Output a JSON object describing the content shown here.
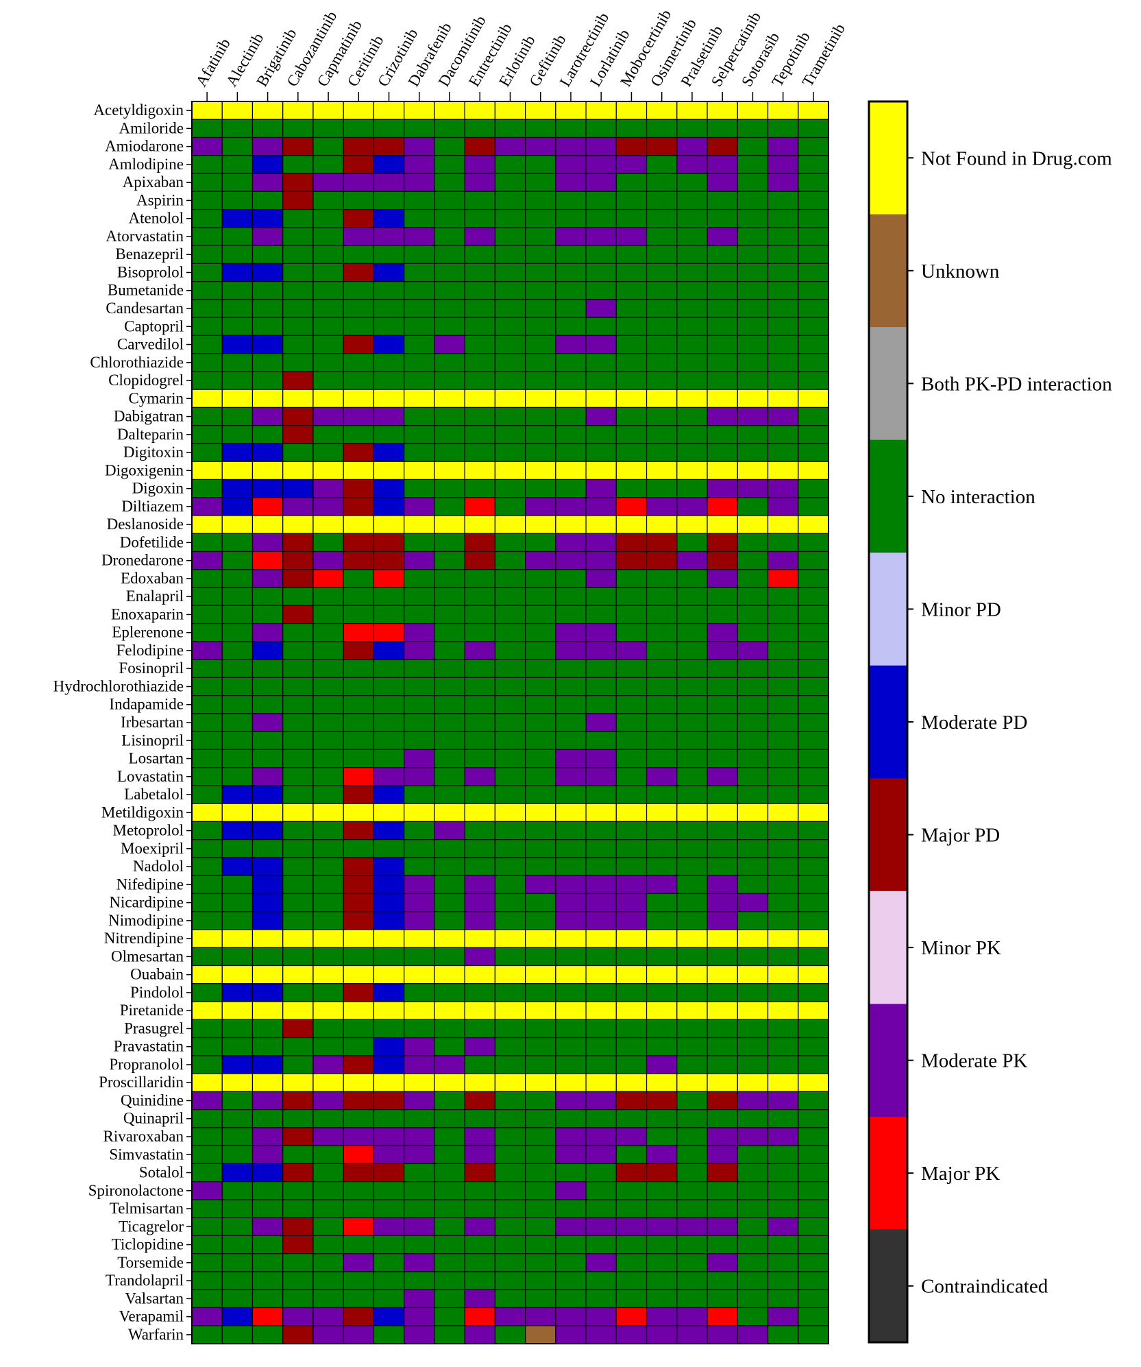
{
  "chart_data": {
    "type": "heatmap",
    "title": "",
    "columns": [
      "Afatinib",
      "Alectinib",
      "Brigatinib",
      "Cabozantinib",
      "Capmatinib",
      "Ceritinib",
      "Crizotinib",
      "Dabrafenib",
      "Dacomitinib",
      "Entrectinib",
      "Erlotinib",
      "Gefitinib",
      "Larotrectinib",
      "Lorlatinib",
      "Mobocertinib",
      "Osimertinib",
      "Pralsetinib",
      "Selpercatinib",
      "Sotorasib",
      "Tepotinib",
      "Trametinib"
    ],
    "rows": [
      "Acetyldigoxin",
      "Amiloride",
      "Amiodarone",
      "Amlodipine",
      "Apixaban",
      "Aspirin",
      "Atenolol",
      "Atorvastatin",
      "Benazepril",
      "Bisoprolol",
      "Bumetanide",
      "Candesartan",
      "Captopril",
      "Carvedilol",
      "Chlorothiazide",
      "Clopidogrel",
      "Cymarin",
      "Dabigatran",
      "Dalteparin",
      "Digitoxin",
      "Digoxigenin",
      "Digoxin",
      "Diltiazem",
      "Deslanoside",
      "Dofetilide",
      "Dronedarone",
      "Edoxaban",
      "Enalapril",
      "Enoxaparin",
      "Eplerenone",
      "Felodipine",
      "Fosinopril",
      "Hydrochlorothiazide",
      "Indapamide",
      "Irbesartan",
      "Lisinopril",
      "Losartan",
      "Lovastatin",
      "Labetalol",
      "Metildigoxin",
      "Metoprolol",
      "Moexipril",
      "Nadolol",
      "Nifedipine",
      "Nicardipine",
      "Nimodipine",
      "Nitrendipine",
      "Olmesartan",
      "Ouabain",
      "Pindolol",
      "Piretanide",
      "Prasugrel",
      "Pravastatin",
      "Propranolol",
      "Proscillaridin",
      "Quinidine",
      "Quinapril",
      "Rivaroxaban",
      "Simvastatin",
      "Sotalol",
      "Spironolactone",
      "Telmisartan",
      "Ticagrelor",
      "Ticlopidine",
      "Torsemide",
      "Trandolapril",
      "Valsartan",
      "Verapamil",
      "Warfarin"
    ],
    "categories": [
      {
        "code": "Y",
        "label": "Not Found in Drug.com",
        "color": "#FFFF00"
      },
      {
        "code": "U",
        "label": "Unknown",
        "color": "#996633"
      },
      {
        "code": "B",
        "label": "Both PK-PD interaction",
        "color": "#9E9E9E"
      },
      {
        "code": "G",
        "label": "No interaction",
        "color": "#008000"
      },
      {
        "code": "L",
        "label": "Minor PD",
        "color": "#C2C2F5"
      },
      {
        "code": "D",
        "label": "Moderate PD",
        "color": "#0000CC"
      },
      {
        "code": "M",
        "label": "Major PD",
        "color": "#990000"
      },
      {
        "code": "K",
        "label": "Minor PK",
        "color": "#ECCDEE"
      },
      {
        "code": "P",
        "label": "Moderate PK",
        "color": "#7000A8"
      },
      {
        "code": "R",
        "label": "Major PK",
        "color": "#FF0000"
      },
      {
        "code": "C",
        "label": "Contraindicated",
        "color": "#333333"
      }
    ],
    "matrix": [
      "YYYYYYYYYYYYYYYYYYYYY",
      "GGGGGGGGGGGGGGGGGGGGG",
      "PGPMGMMPGMPPPPMMPMGPG",
      "GGDGGMDPGPGGPPPGPPGPG",
      "GGPMPPPPGPGGPPGGGPGPG",
      "GGGMGGGGGGGGGGGGGGGGG",
      "GDDGGMDGGGGGGGGGGGGGG",
      "GGPGGPPPGPGGPPPGGPGGG",
      "GGGGGGGGGGGGGGGGGGGGG",
      "GDDGGMDGGGGGGGGGGGGGG",
      "GGGGGGGGGGGGGGGGGGGGG",
      "GGGGGGGGGGGGGPGGGGGGG",
      "GGGGGGGGGGGGGGGGGGGGG",
      "GDDGGMDGPGGGPPGGGGGGG",
      "GGGGGGGGGGGGGGGGGGGGG",
      "GGGMGGGGGGGGGGGGGGGGG",
      "YYYYYYYYYYYYYYYYYYYYY",
      "GGPMPPPGGGGGGPGGGPPPG",
      "GGGMGGGGGGGGGGGGGGGGG",
      "GDDGGMDGGGGGGGGGGGGGG",
      "YYYYYYYYYYYYYYYYYYYYY",
      "GDDDPMDGGGGGGPGGGPPPG",
      "PDRPPMDPGRGPPPRPPRGPG",
      "YYYYYYYYYYYYYYYYYYYYY",
      "GGPMGMMGGMGGPPMMGMGGG",
      "PGRMPMMPGMGPPPMMPMGPG",
      "GGPMRGRGGGGGGPGGGPGRG",
      "GGGGGGGGGGGGGGGGGGGGG",
      "GGGMGGGGGGGGGGGGGGGGG",
      "GGPGGRRPGGGGPPGGGPGGG",
      "PGDGGMDPGPGGPPPGGPPGG",
      "GGGGGGGGGGGGGGGGGGGGG",
      "GGGGGGGGGGGGGGGGGGGGG",
      "GGGGGGGGGGGGGGGGGGGGG",
      "GGPGGGGGGGGGGPGGGGGGG",
      "GGGGGGGGGGGGGGGGGGGGG",
      "GGGGGGGPGGGGPPGGGGGGG",
      "GGPGGRPPGPGGPPGPGPGGG",
      "GDDGGMDGGGGGGGGGGGGGG",
      "YYYYYYYYYYYYYYYYYYYYY",
      "GDDGGMDGPGGGGGGGGGGGG",
      "GGGGGGGGGGGGGGGGGGGGG",
      "GDDGGMDGGGGGGGGGGGGGG",
      "GGDGGMDPGPGPPPPPGPGGG",
      "GGDGGMDPGPGGPPPGGPPGG",
      "GGDGGMDPGPGGPPPGGPGGG",
      "YYYYYYYYYYYYYYYYYYYYY",
      "GGGGGGGGGPGGGGGGGGGGG",
      "YYYYYYYYYYYYYYYYYYYYY",
      "GDDGGMDGGGGGGGGGGGGGG",
      "YYYYYYYYYYYYYYYYYYYYY",
      "GGGMGGGGGGGGGGGGGGGGG",
      "GGGGGGDPGPGGGGGGGGGGG",
      "GDDGPMDPPGGGGGGPGGGGG",
      "YYYYYYYYYYYYYYYYYYYYY",
      "PGPMPMMPGMGGPPMMGMPPG",
      "GGGGGGGGGGGGGGGGGGGGG",
      "GGPMPPPPGPGGPPPGGPPPG",
      "GGPGGRPPGPGGPPGPGPGGG",
      "GDDMGMMGGMGGGGMMGMGGG",
      "PGGGGGGGGGGGPGGGGGGGG",
      "GGGGGGGGGGGGGGGGGGGGG",
      "GGPMGRPPGPGGPPPPPPGPG",
      "GGGMGGGGGGGGGGGGGGGGG",
      "GGGGGPGPGGGGGPGGGPGGG",
      "GGGGGGGGGGGGGGGGGGGGG",
      "GGGGGGGPGPGGGGGGGGGGG",
      "PDRPPMDPGRPPPPRPPRGPG",
      "GGGMPPGPGPGUPPPPPPPGG"
    ],
    "xlabel": "",
    "ylabel": "",
    "legend": "right"
  }
}
